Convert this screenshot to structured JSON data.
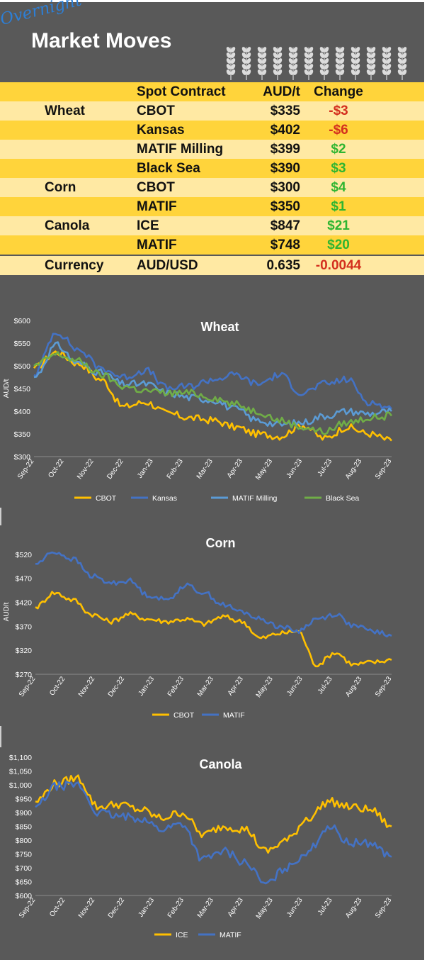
{
  "header": {
    "script_text": "Overnight",
    "title": "Market Moves"
  },
  "colors": {
    "background": "#595959",
    "table_header": "#ffd43b",
    "row_light": "#ffe9a3",
    "row_dark": "#ffd43b",
    "negative": "#d32f1e",
    "positive": "#2fb531"
  },
  "table": {
    "headers": {
      "contract": "Spot Contract",
      "price": "AUD/t",
      "change": "Change"
    },
    "rows": [
      {
        "commodity": "Wheat",
        "contract": "CBOT",
        "price": "$335",
        "change": "-$3",
        "dir": "neg"
      },
      {
        "commodity": "",
        "contract": "Kansas",
        "price": "$402",
        "change": "-$6",
        "dir": "neg"
      },
      {
        "commodity": "",
        "contract": "MATIF Milling",
        "price": "$399",
        "change": "$2",
        "dir": "pos"
      },
      {
        "commodity": "",
        "contract": "Black Sea",
        "price": "$390",
        "change": "$3",
        "dir": "pos"
      },
      {
        "commodity": "Corn",
        "contract": "CBOT",
        "price": "$300",
        "change": "$4",
        "dir": "pos"
      },
      {
        "commodity": "",
        "contract": "MATIF",
        "price": "$350",
        "change": "$1",
        "dir": "pos"
      },
      {
        "commodity": "Canola",
        "contract": "ICE",
        "price": "$847",
        "change": "$21",
        "dir": "pos"
      },
      {
        "commodity": "",
        "contract": "MATIF",
        "price": "$748",
        "change": "$20",
        "dir": "pos"
      },
      {
        "commodity": "Currency",
        "contract": "AUD/USD",
        "price": "0.635",
        "change": "-0.0044",
        "dir": "neg"
      }
    ]
  },
  "chart_data": [
    {
      "type": "line",
      "title": "Wheat",
      "ylabel": "AUD/t",
      "ylim": [
        300,
        600
      ],
      "yticks": [
        300,
        350,
        400,
        450,
        500,
        550,
        600
      ],
      "ytick_labels": [
        "$300",
        "$350",
        "$400",
        "$450",
        "$500",
        "$550",
        "$600"
      ],
      "xtick_labels": [
        "Sep-22",
        "Oct-22",
        "Nov-22",
        "Dec-22",
        "Jan-23",
        "Feb-23",
        "Mar-23",
        "Apr-23",
        "May-23",
        "Jun-23",
        "Jul-23",
        "Aug-23",
        "Sep-23"
      ],
      "legend_position": "bottom",
      "series": [
        {
          "name": "CBOT",
          "color": "#ffc000",
          "values": [
            495,
            530,
            505,
            470,
            410,
            420,
            395,
            385,
            380,
            365,
            350,
            345,
            370,
            340,
            365,
            350,
            335
          ]
        },
        {
          "name": "Kansas",
          "color": "#4472c4",
          "values": [
            480,
            575,
            535,
            495,
            475,
            490,
            450,
            455,
            470,
            480,
            460,
            480,
            440,
            460,
            470,
            420,
            405
          ]
        },
        {
          "name": "MATIF Milling",
          "color": "#5b9bd5",
          "values": [
            475,
            545,
            505,
            485,
            460,
            460,
            440,
            430,
            425,
            405,
            380,
            370,
            375,
            390,
            400,
            395,
            400
          ]
        },
        {
          "name": "Black Sea",
          "color": "#70ad47",
          "values": [
            500,
            525,
            510,
            480,
            455,
            445,
            440,
            440,
            430,
            415,
            400,
            380,
            365,
            355,
            375,
            385,
            390
          ]
        }
      ]
    },
    {
      "type": "line",
      "title": "Corn",
      "ylabel": "AUD/t",
      "ylim": [
        270,
        530
      ],
      "yticks": [
        270,
        320,
        370,
        420,
        470,
        520
      ],
      "ytick_labels": [
        "$270",
        "$320",
        "$370",
        "$420",
        "$470",
        "$520"
      ],
      "xtick_labels": [
        "Sep-22",
        "Oct-22",
        "Nov-22",
        "Dec-22",
        "Jan-23",
        "Feb-23",
        "Mar-23",
        "Apr-23",
        "May-23",
        "Jun-23",
        "Jul-23",
        "Aug-23",
        "Sep-23"
      ],
      "legend_position": "bottom",
      "series": [
        {
          "name": "CBOT",
          "color": "#ffc000",
          "values": [
            410,
            440,
            425,
            395,
            380,
            395,
            385,
            380,
            385,
            375,
            390,
            380,
            345,
            355,
            360,
            290,
            315,
            290,
            295,
            300
          ]
        },
        {
          "name": "MATIF",
          "color": "#4472c4",
          "values": [
            500,
            525,
            510,
            475,
            460,
            465,
            435,
            425,
            455,
            440,
            415,
            400,
            385,
            370,
            360,
            385,
            395,
            370,
            360,
            350
          ]
        }
      ]
    },
    {
      "type": "line",
      "title": "Canola",
      "ylabel": "",
      "ylim": [
        600,
        1100
      ],
      "yticks": [
        600,
        650,
        700,
        750,
        800,
        850,
        900,
        950,
        1000,
        1050,
        1100
      ],
      "ytick_labels": [
        "$600",
        "$650",
        "$700",
        "$750",
        "$800",
        "$850",
        "$900",
        "$950",
        "$1,000",
        "$1,050",
        "$1,100"
      ],
      "xtick_labels": [
        "Sep-22",
        "Oct-22",
        "Nov-22",
        "Dec-22",
        "Jan-23",
        "Feb-23",
        "Mar-23",
        "Apr-23",
        "May-23",
        "Jun-23",
        "Jul-23",
        "Aug-23",
        "Sep-23"
      ],
      "legend_position": "bottom",
      "series": [
        {
          "name": "ICE",
          "color": "#ffc000",
          "values": [
            940,
            1005,
            1025,
            920,
            930,
            910,
            880,
            900,
            820,
            850,
            840,
            760,
            800,
            880,
            940,
            920,
            910,
            850
          ]
        },
        {
          "name": "MATIF",
          "color": "#4472c4",
          "values": [
            920,
            995,
            1000,
            900,
            885,
            880,
            840,
            860,
            730,
            760,
            720,
            640,
            700,
            760,
            850,
            790,
            790,
            740
          ]
        }
      ]
    }
  ]
}
